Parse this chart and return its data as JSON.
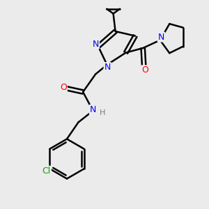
{
  "background_color": "#ebebeb",
  "bond_color": "#000000",
  "bond_width": 1.8,
  "atom_colors": {
    "N": "#0000ff",
    "O": "#ff0000",
    "Cl": "#00aa00",
    "C": "#000000",
    "H": "#777777"
  },
  "font_size_atom": 9,
  "font_size_H": 8,
  "font_size_Cl": 9
}
